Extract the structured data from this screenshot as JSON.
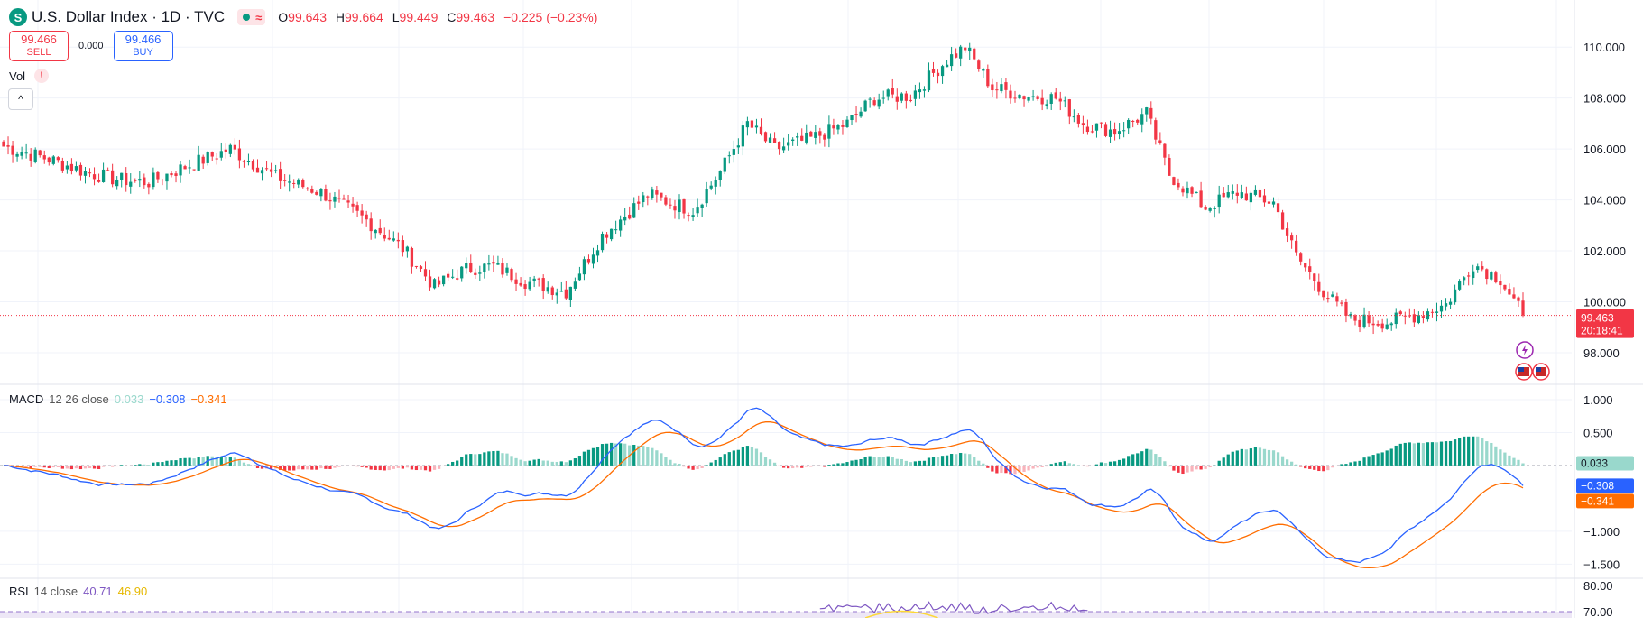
{
  "header": {
    "logo_letter": "S",
    "symbol_title": "U.S. Dollar Index · 1D · TVC",
    "status_wave_icon": "≈",
    "ohlc": [
      {
        "key": "O",
        "value": "99.643"
      },
      {
        "key": "H",
        "value": "99.664"
      },
      {
        "key": "L",
        "value": "99.449"
      },
      {
        "key": "C",
        "value": "99.463"
      }
    ],
    "change": "−0.225 (−0.23%)"
  },
  "trade": {
    "sell_price": "99.466",
    "sell_label": "SELL",
    "spread": "0.000",
    "buy_price": "99.466",
    "buy_label": "BUY"
  },
  "volume": {
    "label": "Vol",
    "warning_icon": "!"
  },
  "collapse_icon": "^",
  "price_badge": {
    "price": "99.463",
    "countdown": "20:18:41"
  },
  "event_icons": [
    "lightning-icon",
    "us-flag-icon",
    "us-flag-icon"
  ],
  "macd_legend": {
    "name": "MACD",
    "params": "12 26 close",
    "hist": "0.033",
    "macd": "−0.308",
    "signal": "−0.341"
  },
  "macd_badges": {
    "hist": "0.033",
    "macd": "−0.308",
    "signal": "−0.341"
  },
  "rsi_legend": {
    "name": "RSI",
    "params": "14 close",
    "rsi": "40.71",
    "ma": "46.90"
  },
  "colors": {
    "up": "#089981",
    "down": "#f23645",
    "up_light": "#99d8cc",
    "down_light": "#f9b3bb",
    "macd_line": "#2962ff",
    "signal_line": "#ff6d00",
    "rsi_line": "#7e57c2",
    "rsi_ma": "#fdd835"
  },
  "chart_data": [
    {
      "type": "candlestick",
      "title": "U.S. Dollar Index · 1D · TVC",
      "ylim": [
        96.9,
        111.0
      ],
      "y_ticks": [
        "110.000",
        "108.000",
        "106.000",
        "104.000",
        "102.000",
        "100.000",
        "98.000"
      ],
      "last_price": 99.463,
      "grid": true,
      "anchors": [
        [
          0,
          106.1
        ],
        [
          10,
          105.6
        ],
        [
          18,
          105.1
        ],
        [
          25,
          104.8
        ],
        [
          32,
          104.7
        ],
        [
          40,
          105.3
        ],
        [
          50,
          106.0
        ],
        [
          60,
          104.9
        ],
        [
          70,
          104.3
        ],
        [
          80,
          103.2
        ],
        [
          88,
          102.1
        ],
        [
          95,
          100.6
        ],
        [
          102,
          101.3
        ],
        [
          108,
          101.4
        ],
        [
          115,
          100.8
        ],
        [
          124,
          100.4
        ],
        [
          132,
          102.6
        ],
        [
          142,
          104.2
        ],
        [
          152,
          103.6
        ],
        [
          158,
          105.1
        ],
        [
          164,
          107.0
        ],
        [
          170,
          106.0
        ],
        [
          178,
          106.4
        ],
        [
          186,
          107.0
        ],
        [
          192,
          108.0
        ],
        [
          200,
          108.1
        ],
        [
          208,
          109.5
        ],
        [
          212,
          110.0
        ],
        [
          218,
          108.4
        ],
        [
          225,
          108.1
        ],
        [
          232,
          108.0
        ],
        [
          238,
          107.0
        ],
        [
          245,
          106.7
        ],
        [
          252,
          107.4
        ],
        [
          257,
          105.0
        ],
        [
          265,
          103.7
        ],
        [
          272,
          104.3
        ],
        [
          280,
          103.9
        ],
        [
          285,
          101.8
        ],
        [
          291,
          100.4
        ],
        [
          297,
          99.3
        ],
        [
          305,
          99.2
        ],
        [
          312,
          99.5
        ],
        [
          318,
          99.9
        ],
        [
          324,
          101.5
        ],
        [
          330,
          100.9
        ],
        [
          335,
          99.463
        ]
      ]
    },
    {
      "type": "histogram+line",
      "title": "MACD 12 26 close",
      "ylim": [
        -1.7,
        1.15
      ],
      "y_ticks": [
        "1.000",
        "0.500",
        "−1.000",
        "−1.500"
      ],
      "series": [
        {
          "name": "Histogram",
          "current": 0.033
        },
        {
          "name": "MACD",
          "current": -0.308
        },
        {
          "name": "Signal",
          "current": -0.341
        }
      ]
    },
    {
      "type": "line",
      "title": "RSI 14 close",
      "y_ticks": [
        "80.00",
        "70.00"
      ],
      "series": [
        {
          "name": "RSI",
          "current": 40.71
        },
        {
          "name": "RSI-based MA",
          "current": 46.9
        }
      ]
    }
  ]
}
